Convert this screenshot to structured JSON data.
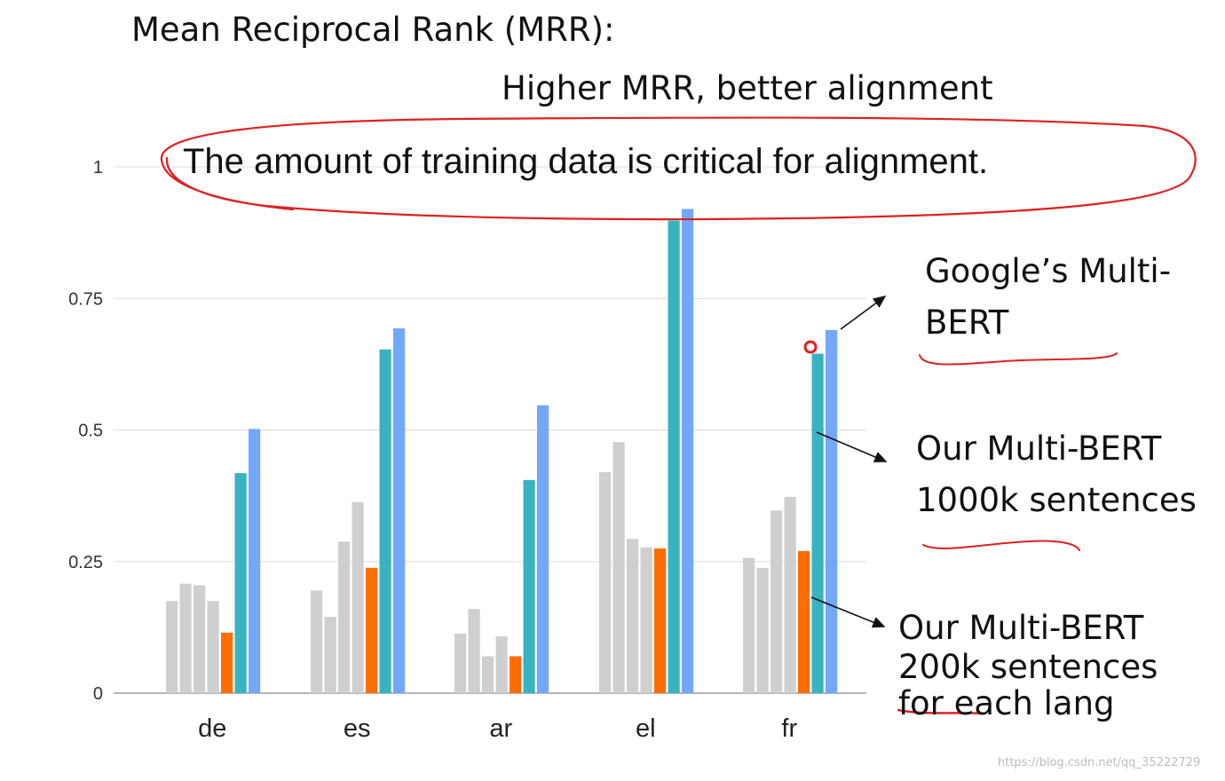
{
  "slide": {
    "title": "Mean Reciprocal Rank (MRR):",
    "subtitle": "Higher MRR, better alignment",
    "claim": "The amount of training data is critical for alignment."
  },
  "annotations": {
    "google": [
      "Google’s Multi-",
      "BERT"
    ],
    "ours_1000k": [
      "Our Multi-BERT",
      "1000k sentences"
    ],
    "ours_200k": [
      "Our Multi-BERT",
      "200k sentences",
      "for each lang"
    ]
  },
  "watermark": "https://blog.csdn.net/qq_35222729",
  "colors": {
    "other": "#cfcfcf",
    "ours_200k": "#ff6d00",
    "ours_1000k": "#37b3c1",
    "google": "#74a7f8",
    "ink": "#e02020",
    "grid": "#dddddd"
  },
  "chart_data": {
    "type": "bar",
    "categories": [
      "de",
      "es",
      "ar",
      "el",
      "fr"
    ],
    "series": [
      {
        "values": [
          0.175,
          0.195,
          0.113,
          0.42,
          0.257
        ]
      },
      {
        "values": [
          0.208,
          0.145,
          0.16,
          0.477,
          0.238
        ]
      },
      {
        "values": [
          0.205,
          0.288,
          0.07,
          0.293,
          0.347
        ]
      },
      {
        "values": [
          0.175,
          0.363,
          0.108,
          0.277,
          0.373
        ]
      },
      {
        "name": "Our Multi-BERT 200k sentences for each lang",
        "values": [
          0.115,
          0.238,
          0.07,
          0.275,
          0.27
        ]
      },
      {
        "name": "Our Multi-BERT 1000k sentences",
        "values": [
          0.418,
          0.653,
          0.405,
          0.898,
          0.645
        ]
      },
      {
        "name": "Google’s Multi-BERT",
        "values": [
          0.502,
          0.693,
          0.547,
          0.92,
          0.69
        ]
      }
    ],
    "yticks": [
      "0",
      "0.25",
      "0.5",
      "0.75",
      "1"
    ],
    "ylim": [
      0,
      1
    ],
    "grid": true
  }
}
